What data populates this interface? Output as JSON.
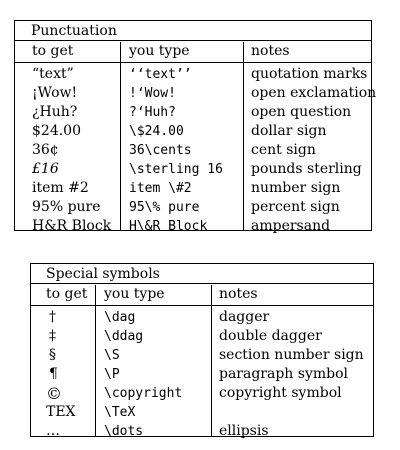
{
  "punctuation": {
    "title": "Punctuation",
    "headers": [
      "to get",
      "you type",
      "notes"
    ],
    "rows": [
      {
        "get": "“text”",
        "type": "‘‘text’’",
        "note": "quotation marks"
      },
      {
        "get": "¡Wow!",
        "type": "!‘Wow!",
        "note": "open exclamation"
      },
      {
        "get": "¿Huh?",
        "type": "?‘Huh?",
        "note": "open question"
      },
      {
        "get": "$24.00",
        "type": "\\$24.00",
        "note": "dollar sign"
      },
      {
        "get": "36¢",
        "type": "36\\cents",
        "note": "cent sign"
      },
      {
        "get": "£16",
        "type": "\\sterling 16",
        "note": "pounds sterling"
      },
      {
        "get": "item #2",
        "type": "item \\#2",
        "note": "number sign"
      },
      {
        "get": "95% pure",
        "type": "95\\% pure",
        "note": "percent sign"
      },
      {
        "get": "H&R Block",
        "type": "H\\&R Block",
        "note": "ampersand"
      }
    ]
  },
  "special": {
    "title": "Special symbols",
    "headers": [
      "to get",
      "you type",
      "notes"
    ],
    "rows": [
      {
        "get": "†",
        "type": "\\dag",
        "note": "dagger"
      },
      {
        "get": "‡",
        "type": "\\ddag",
        "note": "double dagger"
      },
      {
        "get": "§",
        "type": "\\S",
        "note": "section number sign"
      },
      {
        "get": "¶",
        "type": "\\P",
        "note": "paragraph symbol"
      },
      {
        "get": "©",
        "type": "\\copyright",
        "note": "copyright symbol"
      },
      {
        "get": "TEX",
        "type": "\\TeX",
        "note": ""
      },
      {
        "get": "…",
        "type": "\\dots",
        "note": "ellipsis"
      }
    ]
  }
}
